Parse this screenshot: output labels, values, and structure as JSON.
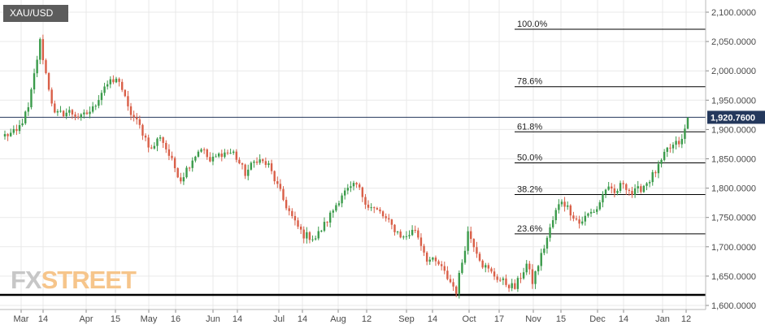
{
  "symbol": "XAU/USD",
  "watermark": {
    "fx": "FX",
    "street": "STREET"
  },
  "colors": {
    "up": "#3b9b4b",
    "down": "#d95f48",
    "grid": "#e9e9e9",
    "fib": "#000000",
    "price_line": "#24385c"
  },
  "chart_data": {
    "type": "candlestick",
    "instrument": "XAU/USD",
    "y_ticks": [
      {
        "value": 1600,
        "label": "1,600.0000"
      },
      {
        "value": 1650,
        "label": "1,650.0000"
      },
      {
        "value": 1700,
        "label": "1,700.0000"
      },
      {
        "value": 1750,
        "label": "1,750.0000"
      },
      {
        "value": 1800,
        "label": "1,800.0000"
      },
      {
        "value": 1850,
        "label": "1,850.0000"
      },
      {
        "value": 1900,
        "label": "1,900.0000"
      },
      {
        "value": 1950,
        "label": "1,950.0000"
      },
      {
        "value": 2000,
        "label": "2,000.0000"
      },
      {
        "value": 2050,
        "label": "2,050.0000"
      },
      {
        "value": 2100,
        "label": "2,100.0000"
      }
    ],
    "ylim": [
      1595,
      2110
    ],
    "x_ticks": [
      "Mar",
      "14",
      "Apr",
      "15",
      "May",
      "16",
      "Jun",
      "14",
      "Jul",
      "14",
      "Aug",
      "12",
      "Sep",
      "14",
      "Oct",
      "17",
      "Nov",
      "15",
      "Dec",
      "14",
      "Jan",
      "12"
    ],
    "last_price": {
      "value": 1920.76,
      "label": "1,920.7600"
    },
    "support_line": 1618,
    "fibonacci_levels": [
      {
        "label": "100.0%",
        "value": 2071
      },
      {
        "label": "78.6%",
        "value": 1973
      },
      {
        "label": "61.8%",
        "value": 1896
      },
      {
        "label": "50.0%",
        "value": 1843
      },
      {
        "label": "38.2%",
        "value": 1789
      },
      {
        "label": "23.6%",
        "value": 1722
      }
    ],
    "anchors": [
      {
        "i": 0,
        "v": 1890
      },
      {
        "i": 4,
        "v": 1895
      },
      {
        "i": 8,
        "v": 1935
      },
      {
        "i": 12,
        "v": 2050
      },
      {
        "i": 14,
        "v": 1995
      },
      {
        "i": 17,
        "v": 1925
      },
      {
        "i": 22,
        "v": 1930
      },
      {
        "i": 26,
        "v": 1920
      },
      {
        "i": 30,
        "v": 1935
      },
      {
        "i": 34,
        "v": 1975
      },
      {
        "i": 39,
        "v": 1985
      },
      {
        "i": 42,
        "v": 1935
      },
      {
        "i": 46,
        "v": 1905
      },
      {
        "i": 50,
        "v": 1865
      },
      {
        "i": 53,
        "v": 1890
      },
      {
        "i": 57,
        "v": 1845
      },
      {
        "i": 60,
        "v": 1815
      },
      {
        "i": 64,
        "v": 1850
      },
      {
        "i": 67,
        "v": 1870
      },
      {
        "i": 70,
        "v": 1845
      },
      {
        "i": 74,
        "v": 1860
      },
      {
        "i": 78,
        "v": 1860
      },
      {
        "i": 82,
        "v": 1825
      },
      {
        "i": 86,
        "v": 1850
      },
      {
        "i": 90,
        "v": 1838
      },
      {
        "i": 95,
        "v": 1780
      },
      {
        "i": 99,
        "v": 1740
      },
      {
        "i": 102,
        "v": 1720
      },
      {
        "i": 106,
        "v": 1715
      },
      {
        "i": 110,
        "v": 1745
      },
      {
        "i": 115,
        "v": 1790
      },
      {
        "i": 120,
        "v": 1805
      },
      {
        "i": 124,
        "v": 1770
      },
      {
        "i": 128,
        "v": 1758
      },
      {
        "i": 132,
        "v": 1735
      },
      {
        "i": 136,
        "v": 1715
      },
      {
        "i": 140,
        "v": 1730
      },
      {
        "i": 144,
        "v": 1680
      },
      {
        "i": 148,
        "v": 1670
      },
      {
        "i": 152,
        "v": 1640
      },
      {
        "i": 154,
        "v": 1625
      },
      {
        "i": 158,
        "v": 1725
      },
      {
        "i": 160,
        "v": 1705
      },
      {
        "i": 163,
        "v": 1670
      },
      {
        "i": 166,
        "v": 1655
      },
      {
        "i": 170,
        "v": 1640
      },
      {
        "i": 174,
        "v": 1630
      },
      {
        "i": 178,
        "v": 1670
      },
      {
        "i": 180,
        "v": 1640
      },
      {
        "i": 184,
        "v": 1700
      },
      {
        "i": 188,
        "v": 1760
      },
      {
        "i": 190,
        "v": 1780
      },
      {
        "i": 193,
        "v": 1760
      },
      {
        "i": 196,
        "v": 1740
      },
      {
        "i": 199,
        "v": 1755
      },
      {
        "i": 202,
        "v": 1765
      },
      {
        "i": 205,
        "v": 1800
      },
      {
        "i": 208,
        "v": 1790
      },
      {
        "i": 211,
        "v": 1810
      },
      {
        "i": 214,
        "v": 1790
      },
      {
        "i": 217,
        "v": 1800
      },
      {
        "i": 220,
        "v": 1815
      },
      {
        "i": 223,
        "v": 1835
      },
      {
        "i": 226,
        "v": 1865
      },
      {
        "i": 229,
        "v": 1875
      },
      {
        "i": 231,
        "v": 1880
      },
      {
        "i": 233,
        "v": 1920
      }
    ]
  }
}
